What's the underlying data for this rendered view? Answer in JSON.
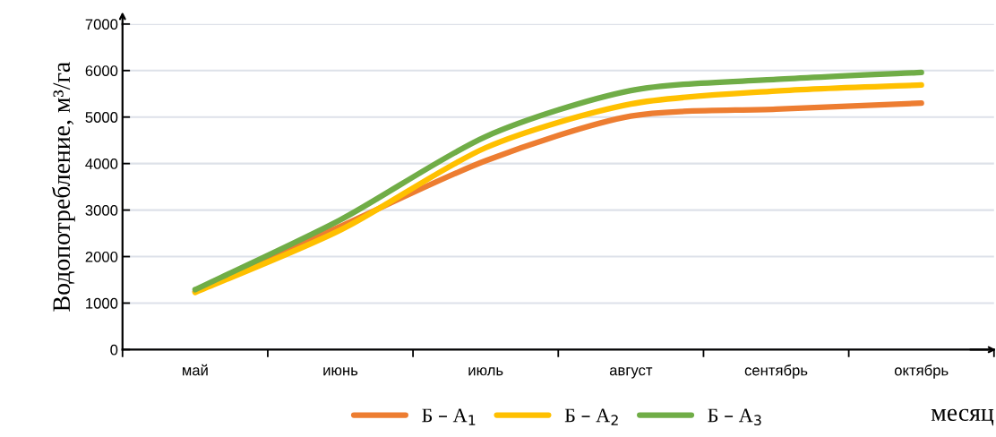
{
  "chart_data": {
    "type": "line",
    "ylabel": "Водопотребление, м³/га",
    "xlabel": "месяц",
    "categories": [
      "май",
      "июнь",
      "июль",
      "август",
      "сентябрь",
      "октябрь"
    ],
    "series": [
      {
        "name": "Б – А$_{1}$",
        "color": "#ed7d31",
        "values": [
          1250,
          2650,
          4060,
          5020,
          5170,
          5300
        ]
      },
      {
        "name": "Б – А$_{2}$",
        "color": "#ffc000",
        "values": [
          1230,
          2570,
          4340,
          5280,
          5560,
          5690
        ]
      },
      {
        "name": "Б – А$_{3}$",
        "color": "#70ad47",
        "values": [
          1290,
          2790,
          4580,
          5570,
          5810,
          5960
        ]
      }
    ],
    "ylim": [
      0,
      7000
    ],
    "yticks": [
      0,
      1000,
      2000,
      3000,
      4000,
      5000,
      6000,
      7000
    ],
    "grid": "y",
    "legend": "bottom",
    "line_style": "solid",
    "marker": "none"
  }
}
